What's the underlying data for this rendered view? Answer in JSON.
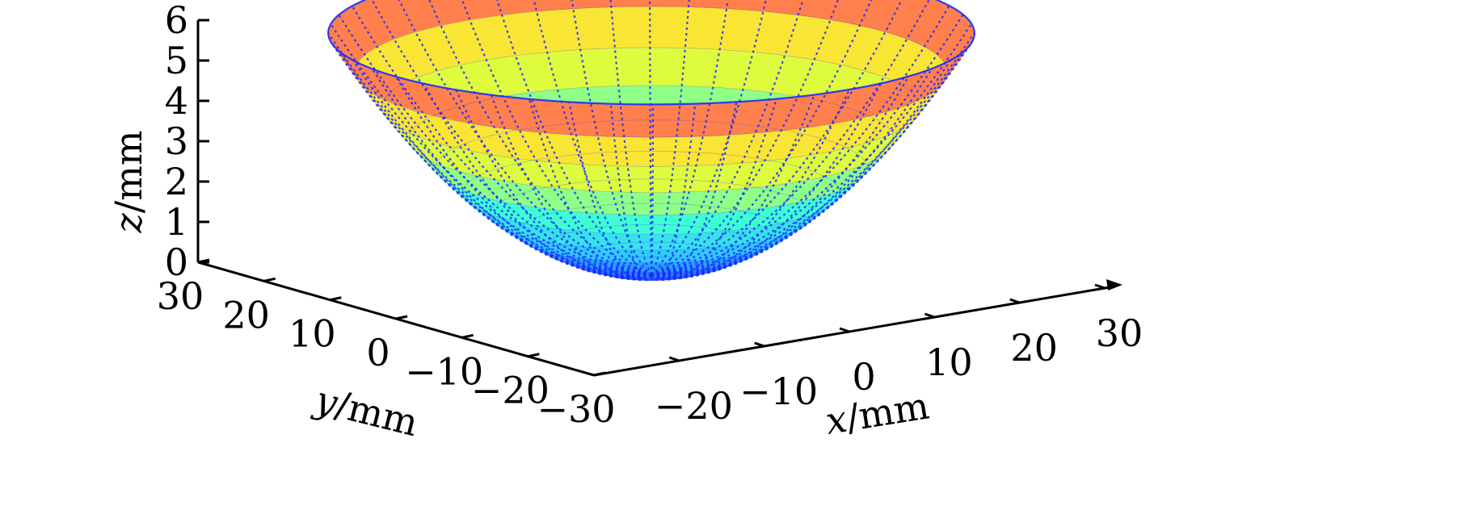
{
  "chart_data": {
    "type": "surface3d",
    "title": "",
    "xlabel": {
      "var": "x",
      "unit": "/mm"
    },
    "ylabel": {
      "var": "y",
      "unit": "/mm"
    },
    "zlabel": {
      "var": "z",
      "unit": "/mm"
    },
    "x_ticks": [
      "−20",
      "−10",
      "0",
      "10",
      "20",
      "30"
    ],
    "y_ticks": [
      "30",
      "20",
      "10",
      "0",
      "−10",
      "−20",
      "−30"
    ],
    "z_ticks": [
      "0",
      "1",
      "2",
      "3",
      "4",
      "5",
      "6"
    ],
    "xlim": [
      -30,
      30
    ],
    "ylim": [
      -30,
      30
    ],
    "zlim": [
      0,
      6
    ],
    "surface": {
      "description_equation": "z = 6 * (x^2 + y^2) / 30^2",
      "r_max": 30,
      "z_min": 0,
      "z_max": 6,
      "radial_lines": 48,
      "colormap": [
        "#2040ff",
        "#30c8ff",
        "#40ffd0",
        "#d8ff40",
        "#ffe030",
        "#ff4060"
      ],
      "mesh_color": "#1a2cff"
    },
    "grid": false,
    "legend": "none"
  }
}
